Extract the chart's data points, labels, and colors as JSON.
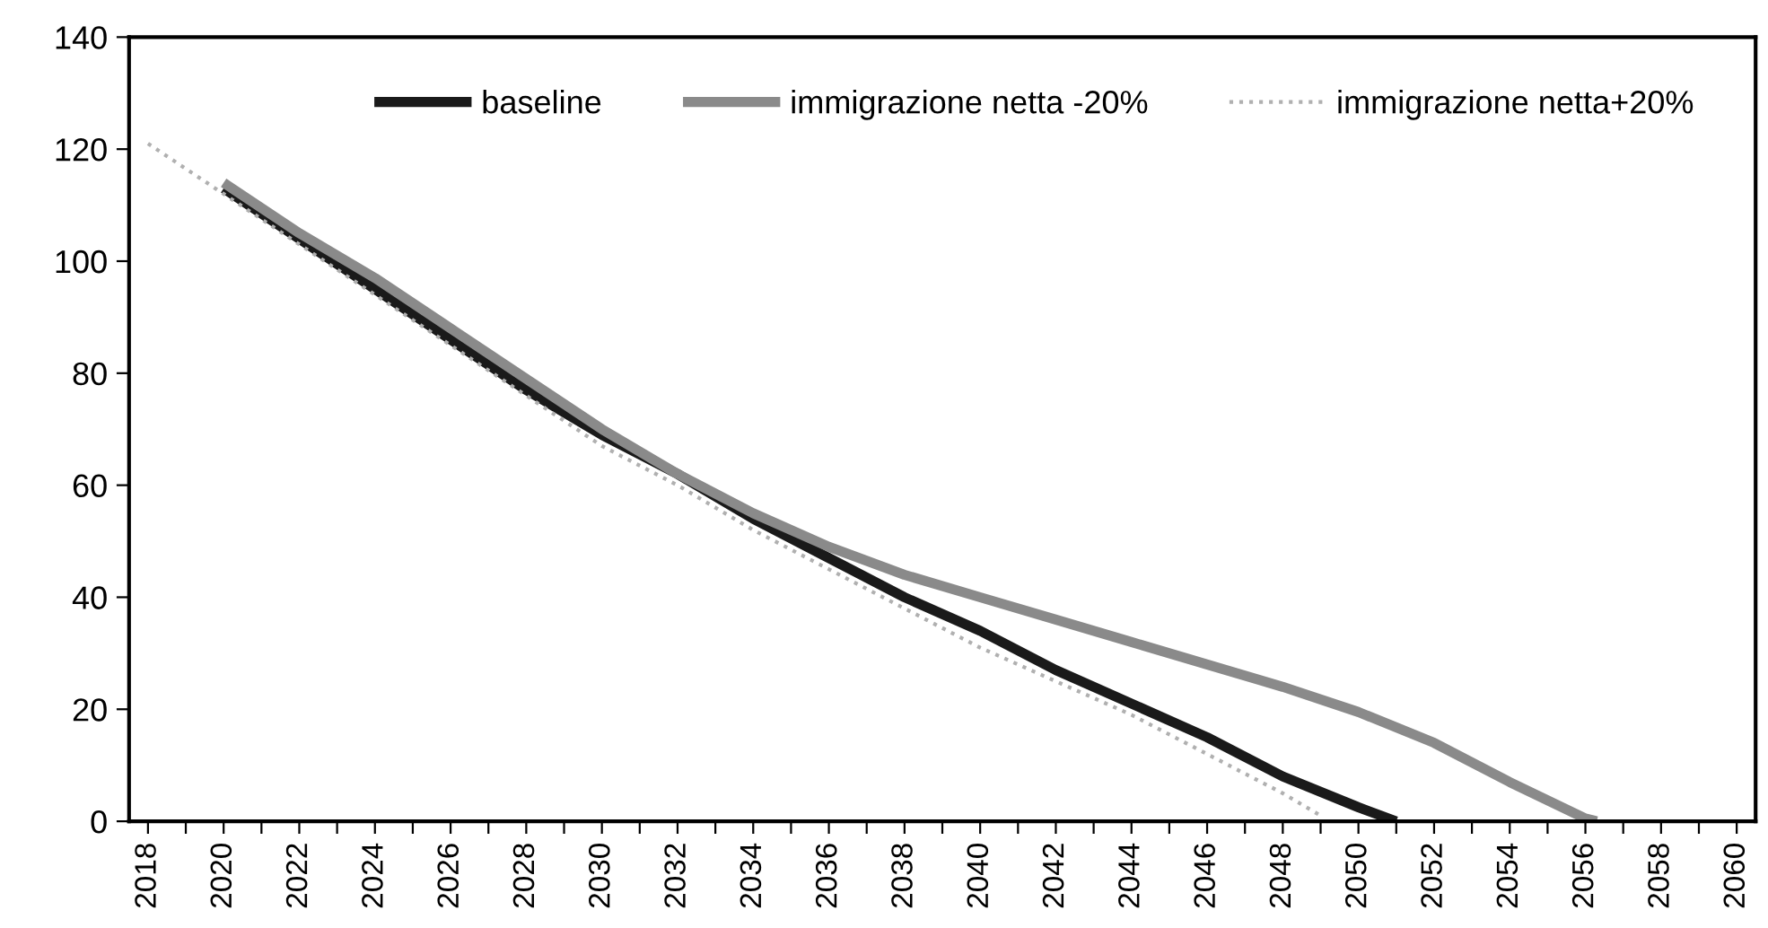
{
  "chart_data": {
    "type": "line",
    "series": [
      {
        "name": "baseline",
        "color": "#1a1a1a",
        "line_style": "solid",
        "x": [
          2020,
          2022,
          2024,
          2026,
          2028,
          2030,
          2032,
          2034,
          2036,
          2038,
          2040,
          2042,
          2044,
          2046,
          2048,
          2050,
          2051
        ],
        "values": [
          113,
          104,
          95,
          86,
          77,
          69,
          62,
          54,
          47,
          40,
          34,
          27,
          21,
          15,
          8,
          2.5,
          0
        ]
      },
      {
        "name": "immigrazione netta -20%",
        "color": "#8a8a8a",
        "line_style": "solid",
        "x": [
          2020,
          2022,
          2024,
          2026,
          2028,
          2030,
          2032,
          2034,
          2036,
          2038,
          2040,
          2042,
          2044,
          2046,
          2048,
          2050,
          2052,
          2054,
          2056,
          2056.3
        ],
        "values": [
          114,
          105,
          97,
          88,
          79,
          70,
          62,
          55,
          49,
          44,
          40,
          36,
          32,
          28,
          24,
          19.5,
          14,
          7,
          0.5,
          0
        ]
      },
      {
        "name": "immigrazione netta+20%",
        "color": "#b0b0b0",
        "line_style": "dotted",
        "x": [
          2018,
          2020,
          2022,
          2024,
          2026,
          2028,
          2030,
          2032,
          2034,
          2036,
          2038,
          2040,
          2042,
          2044,
          2046,
          2048,
          2049
        ],
        "values": [
          121,
          112,
          103,
          94,
          85,
          76,
          67,
          60,
          52,
          45,
          38,
          31,
          25,
          19,
          12,
          5,
          1
        ]
      }
    ],
    "xlim": [
      2017.5,
      2060.5
    ],
    "xticks": [
      2018,
      {
        "value": 2019,
        "label": null
      },
      2020,
      {
        "value": 2021,
        "label": null
      },
      2022,
      {
        "value": 2023,
        "label": null
      },
      2024,
      {
        "value": 2025,
        "label": null
      },
      2026,
      {
        "value": 2027,
        "label": null
      },
      2028,
      {
        "value": 2029,
        "label": null
      },
      2030,
      {
        "value": 2031,
        "label": null
      },
      2032,
      {
        "value": 2033,
        "label": null
      },
      2034,
      {
        "value": 2035,
        "label": null
      },
      2036,
      {
        "value": 2037,
        "label": null
      },
      2038,
      {
        "value": 2039,
        "label": null
      },
      2040,
      {
        "value": 2041,
        "label": null
      },
      2042,
      {
        "value": 2043,
        "label": null
      },
      2044,
      {
        "value": 2045,
        "label": null
      },
      2046,
      {
        "value": 2047,
        "label": null
      },
      2048,
      {
        "value": 2049,
        "label": null
      },
      2050,
      {
        "value": 2051,
        "label": null
      },
      2052,
      {
        "value": 2053,
        "label": null
      },
      2054,
      {
        "value": 2055,
        "label": null
      },
      2056,
      {
        "value": 2057,
        "label": null
      },
      2058,
      {
        "value": 2059,
        "label": null
      },
      2060
    ],
    "ylim": [
      0,
      140
    ],
    "yticks": [
      0,
      20,
      40,
      60,
      80,
      100,
      120,
      140
    ],
    "grid": false,
    "legend": "top right",
    "marker": "none"
  }
}
